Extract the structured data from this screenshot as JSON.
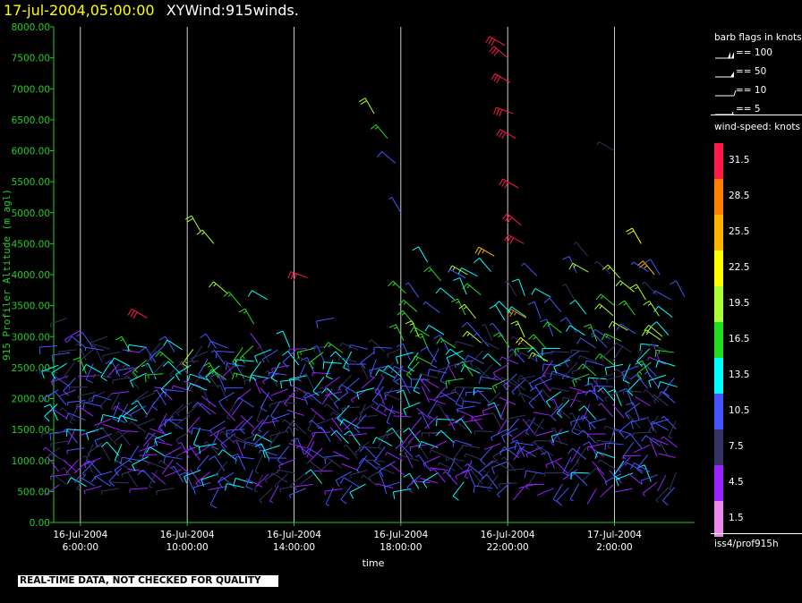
{
  "header": {
    "date": "17-jul-2004,05:00:00",
    "title": "XYWind:915winds."
  },
  "chart_data": {
    "type": "scatter",
    "title": "XYWind:915winds.",
    "xlabel": "time",
    "ylabel": "915 Profiler Altitude (m agl)",
    "ylim": [
      0,
      8000
    ],
    "yticks": [
      "0.00",
      "500.00",
      "1000.00",
      "1500.00",
      "2000.00",
      "2500.00",
      "3000.00",
      "3500.00",
      "4000.00",
      "4500.00",
      "5000.00",
      "5500.00",
      "6000.00",
      "6500.00",
      "7000.00",
      "7500.00",
      "8000.00"
    ],
    "xticks": [
      {
        "date": "16-Jul-2004",
        "time": "6:00:00"
      },
      {
        "date": "16-Jul-2004",
        "time": "10:00:00"
      },
      {
        "date": "16-Jul-2004",
        "time": "14:00:00"
      },
      {
        "date": "16-Jul-2004",
        "time": "18:00:00"
      },
      {
        "date": "16-Jul-2004",
        "time": "22:00:00"
      },
      {
        "date": "17-Jul-2004",
        "time": "2:00:00"
      }
    ],
    "xlim_hours": [
      5.0,
      29.0
    ],
    "grid": "vertical",
    "series": [
      {
        "name": "wind barbs",
        "description_note": ""
      }
    ],
    "wind_barbs": [
      {
        "t": 5.5,
        "alt": 3300,
        "dir": 250,
        "spd": 6
      },
      {
        "t": 6.0,
        "alt": 3100,
        "dir": 240,
        "spd": 5
      },
      {
        "t": 6.5,
        "alt": 2800,
        "dir": 230,
        "spd": 7
      },
      {
        "t": 7.0,
        "alt": 3000,
        "dir": 250,
        "spd": 8
      },
      {
        "t": 8.0,
        "alt": 2500,
        "dir": 260,
        "spd": 9
      },
      {
        "t": 8.5,
        "alt": 3300,
        "dir": 300,
        "spd": 30
      },
      {
        "t": 9.0,
        "alt": 2900,
        "dir": 220,
        "spd": 7
      },
      {
        "t": 10.5,
        "alt": 4700,
        "dir": 330,
        "spd": 20
      },
      {
        "t": 11.0,
        "alt": 4500,
        "dir": 320,
        "spd": 18
      },
      {
        "t": 11.5,
        "alt": 3700,
        "dir": 310,
        "spd": 19
      },
      {
        "t": 12.0,
        "alt": 3500,
        "dir": 320,
        "spd": 17
      },
      {
        "t": 12.5,
        "alt": 3200,
        "dir": 330,
        "spd": 16
      },
      {
        "t": 13.0,
        "alt": 3600,
        "dir": 300,
        "spd": 14
      },
      {
        "t": 14.5,
        "alt": 3950,
        "dir": 290,
        "spd": 30
      },
      {
        "t": 15.5,
        "alt": 3300,
        "dir": 260,
        "spd": 10
      },
      {
        "t": 17.0,
        "alt": 6600,
        "dir": 330,
        "spd": 20
      },
      {
        "t": 17.5,
        "alt": 6200,
        "dir": 320,
        "spd": 17
      },
      {
        "t": 17.8,
        "alt": 5800,
        "dir": 310,
        "spd": 11
      },
      {
        "t": 18.0,
        "alt": 5000,
        "dir": 330,
        "spd": 9
      },
      {
        "t": 18.5,
        "alt": 3200,
        "dir": 320,
        "spd": 15
      },
      {
        "t": 19.0,
        "alt": 4200,
        "dir": 330,
        "spd": 14
      },
      {
        "t": 19.5,
        "alt": 3900,
        "dir": 320,
        "spd": 17
      },
      {
        "t": 20.0,
        "alt": 3600,
        "dir": 310,
        "spd": 13
      },
      {
        "t": 20.5,
        "alt": 4000,
        "dir": 300,
        "spd": 19
      },
      {
        "t": 21.0,
        "alt": 2900,
        "dir": 310,
        "spd": 18
      },
      {
        "t": 21.5,
        "alt": 4300,
        "dir": 300,
        "spd": 26
      },
      {
        "t": 21.9,
        "alt": 7700,
        "dir": 300,
        "spd": 32
      },
      {
        "t": 22.0,
        "alt": 7500,
        "dir": 310,
        "spd": 32
      },
      {
        "t": 22.1,
        "alt": 7100,
        "dir": 300,
        "spd": 31
      },
      {
        "t": 22.2,
        "alt": 6600,
        "dir": 290,
        "spd": 32
      },
      {
        "t": 22.3,
        "alt": 6200,
        "dir": 300,
        "spd": 31
      },
      {
        "t": 22.4,
        "alt": 5400,
        "dir": 300,
        "spd": 32
      },
      {
        "t": 22.5,
        "alt": 4800,
        "dir": 310,
        "spd": 32
      },
      {
        "t": 22.6,
        "alt": 4500,
        "dir": 300,
        "spd": 31
      },
      {
        "t": 22.7,
        "alt": 3300,
        "dir": 300,
        "spd": 28
      },
      {
        "t": 23.0,
        "alt": 2800,
        "dir": 310,
        "spd": 21
      },
      {
        "t": 23.5,
        "alt": 2600,
        "dir": 300,
        "spd": 19
      },
      {
        "t": 24.0,
        "alt": 3400,
        "dir": 320,
        "spd": 11
      },
      {
        "t": 24.5,
        "alt": 3600,
        "dir": 330,
        "spd": 8
      },
      {
        "t": 25.0,
        "alt": 4300,
        "dir": 320,
        "spd": 6
      },
      {
        "t": 26.0,
        "alt": 3500,
        "dir": 310,
        "spd": 15
      },
      {
        "t": 26.5,
        "alt": 3100,
        "dir": 300,
        "spd": 18
      },
      {
        "t": 27.0,
        "alt": 4500,
        "dir": 330,
        "spd": 21
      },
      {
        "t": 27.5,
        "alt": 4000,
        "dir": 320,
        "spd": 26
      },
      {
        "t": 27.8,
        "alt": 3000,
        "dir": 310,
        "spd": 20
      },
      {
        "t": 26.0,
        "alt": 6000,
        "dir": 300,
        "spd": 8
      }
    ]
  },
  "legend": {
    "barb_title": "barb flags in knots",
    "barbs": [
      {
        "label": "== 100"
      },
      {
        "label": "== 50"
      },
      {
        "label": "== 10"
      },
      {
        "label": "== 5"
      }
    ],
    "speed_title": "wind-speed: knots",
    "speed_scale": [
      {
        "label": "31.5",
        "color": "#ff1a4a"
      },
      {
        "label": "28.5",
        "color": "#ff7f00"
      },
      {
        "label": "25.5",
        "color": "#ffb400"
      },
      {
        "label": "22.5",
        "color": "#ffff00"
      },
      {
        "label": "19.5",
        "color": "#aaff33"
      },
      {
        "label": "16.5",
        "color": "#22dd22"
      },
      {
        "label": "13.5",
        "color": "#00ffff"
      },
      {
        "label": "10.5",
        "color": "#4455ff"
      },
      {
        "label": "7.5",
        "color": "#333366"
      },
      {
        "label": "4.5",
        "color": "#9922ff"
      },
      {
        "label": "1.5",
        "color": "#ee88ee"
      }
    ],
    "source": "iss4/prof915h"
  },
  "disclaimer": "REAL-TIME DATA, NOT CHECKED FOR QUALITY",
  "colors": {
    "axis": "#22cc22",
    "grid": "#ffffff",
    "background": "#000000"
  }
}
